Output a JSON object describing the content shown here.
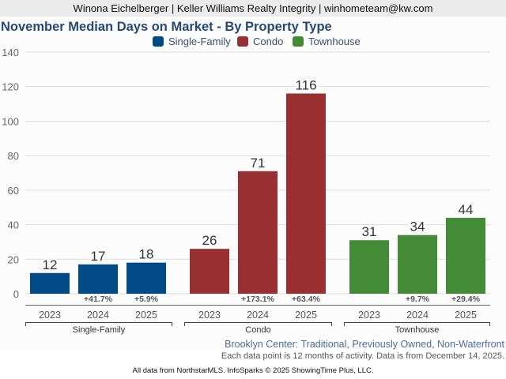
{
  "header": {
    "text": "Winona Eichelberger | Keller Williams Realty Integrity | winhometeam@kw.com"
  },
  "chart_data": {
    "type": "bar",
    "title": "November Median Days on Market - By Property Type",
    "xlabel": "",
    "ylabel": "",
    "ylim": [
      0,
      140
    ],
    "yticks": [
      0,
      20,
      40,
      60,
      80,
      100,
      120,
      140
    ],
    "grid": true,
    "legend_position": "top-center",
    "categories": [
      "2023",
      "2024",
      "2025"
    ],
    "series": [
      {
        "name": "Single-Family",
        "color": "#004b87",
        "values": [
          12,
          17,
          18
        ],
        "changes": [
          "",
          "+41.7%",
          "+5.9%"
        ]
      },
      {
        "name": "Condo",
        "color": "#983032",
        "values": [
          26,
          71,
          116
        ],
        "changes": [
          "",
          "+173.1%",
          "+63.4%"
        ]
      },
      {
        "name": "Townhouse",
        "color": "#438b37",
        "values": [
          31,
          34,
          44
        ],
        "changes": [
          "",
          "+9.7%",
          "+29.4%"
        ]
      }
    ]
  },
  "subtitle": {
    "location": "Brooklyn Center: Traditional, Previously Owned, Non-Waterfront",
    "note": "Each data point is 12 months of activity. Data is from December 14, 2025."
  },
  "footer": {
    "text": "All data from NorthstarMLS. InfoSparks © 2025 ShowingTime Plus, LLC."
  }
}
